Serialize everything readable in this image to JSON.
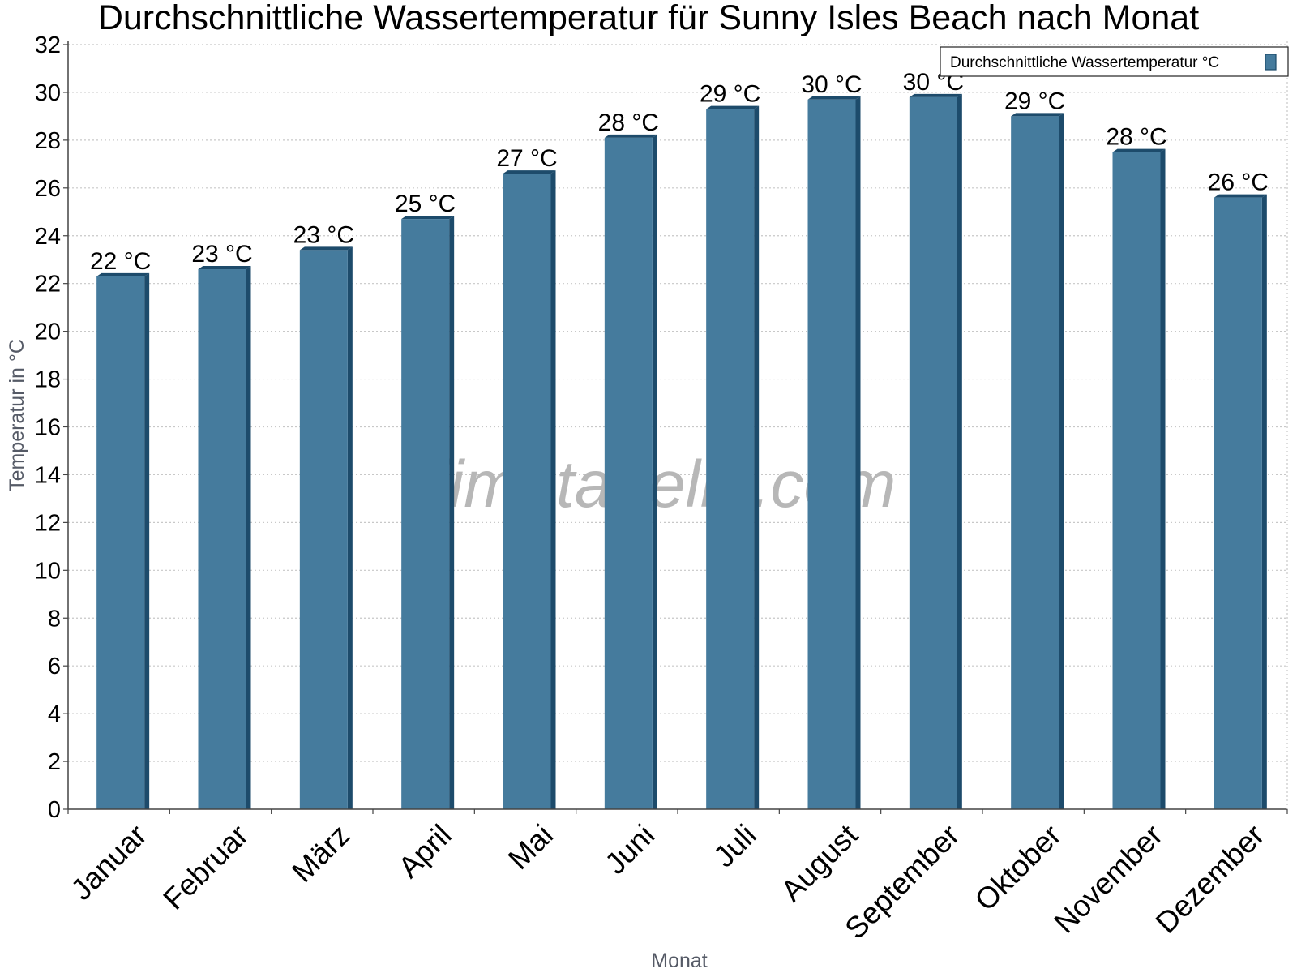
{
  "colors": {
    "bar_front": "#457b9d",
    "bar_side": "#1d4b6b",
    "bar_top": "#1d4b6b",
    "grid": "#c8c8c8",
    "axis": "#444444"
  },
  "watermark": "klimatabelle.com",
  "chart_data": {
    "type": "bar",
    "title": "Durchschnittliche Wassertemperatur für Sunny Isles Beach nach Monat",
    "xlabel": "Monat",
    "ylabel": "Temperatur in °C",
    "ylim": [
      0,
      32
    ],
    "ytick_step": 2,
    "yticks": [
      "0",
      "2",
      "4",
      "6",
      "8",
      "10",
      "12",
      "14",
      "16",
      "18",
      "20",
      "22",
      "24",
      "26",
      "28",
      "30",
      "32"
    ],
    "grid": true,
    "legend_position": "top-right",
    "categories": [
      "Januar",
      "Februar",
      "März",
      "April",
      "Mai",
      "Juni",
      "Juli",
      "August",
      "September",
      "Oktober",
      "November",
      "Dezember"
    ],
    "series": [
      {
        "name": "Durchschnittliche Wassertemperatur °C",
        "values": [
          22.3,
          22.6,
          23.4,
          24.7,
          26.6,
          28.1,
          29.3,
          29.7,
          29.8,
          29.0,
          27.5,
          25.6
        ],
        "labels": [
          "22 °C",
          "23 °C",
          "23 °C",
          "25 °C",
          "27 °C",
          "28 °C",
          "29 °C",
          "30 °C",
          "30 °C",
          "29 °C",
          "28 °C",
          "26 °C"
        ]
      }
    ]
  }
}
